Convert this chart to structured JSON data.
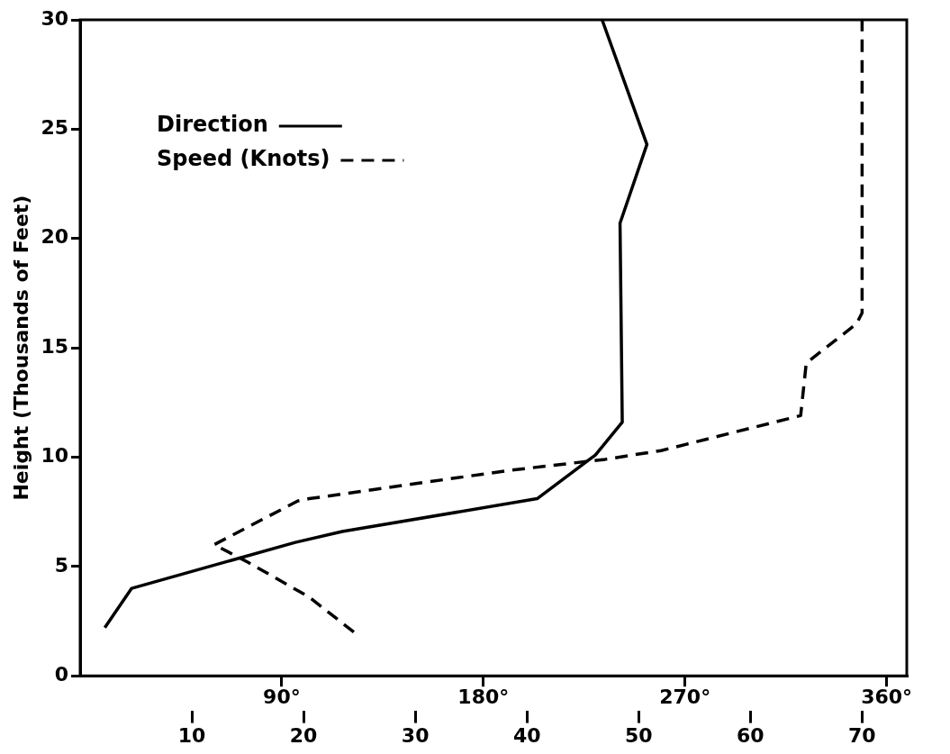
{
  "chart_data": {
    "type": "line",
    "ylabel": "Height (Thousands of Feet)",
    "xlim": [
      0,
      369
    ],
    "xticks": [
      {
        "value": 90,
        "label": "90°"
      },
      {
        "value": 180,
        "label": "180°"
      },
      {
        "value": 270,
        "label": "270°"
      },
      {
        "value": 360,
        "label": "360°"
      }
    ],
    "x2lim": [
      0,
      74
    ],
    "x2ticks": [
      10,
      20,
      30,
      40,
      50,
      60,
      70
    ],
    "ylim": [
      0,
      30
    ],
    "yticks": [
      0,
      5,
      10,
      15,
      20,
      25,
      30
    ],
    "legend": "top left",
    "marker": "none",
    "series": [
      {
        "name": "Direction",
        "color": "#000000",
        "line_style": "solid",
        "x": [
          11,
          23,
          96,
          117,
          204,
          230,
          242,
          241,
          253,
          233
        ],
        "values": [
          2.2,
          4.0,
          6.1,
          6.6,
          8.1,
          10.1,
          11.6,
          20.7,
          24.3,
          30
        ]
      },
      {
        "name": "Speed (Knots)",
        "color": "#000000",
        "line_style": "dashed",
        "axis": "x2",
        "x": [
          24.5,
          20.5,
          15,
          12,
          19.5,
          20.5,
          38.5,
          47,
          52,
          64.5,
          65,
          69.5,
          70,
          70
        ],
        "values": [
          2.0,
          3.6,
          5.2,
          6.0,
          8.0,
          8.1,
          9.4,
          9.9,
          10.3,
          11.9,
          14.3,
          16.1,
          16.6,
          30
        ]
      }
    ]
  }
}
